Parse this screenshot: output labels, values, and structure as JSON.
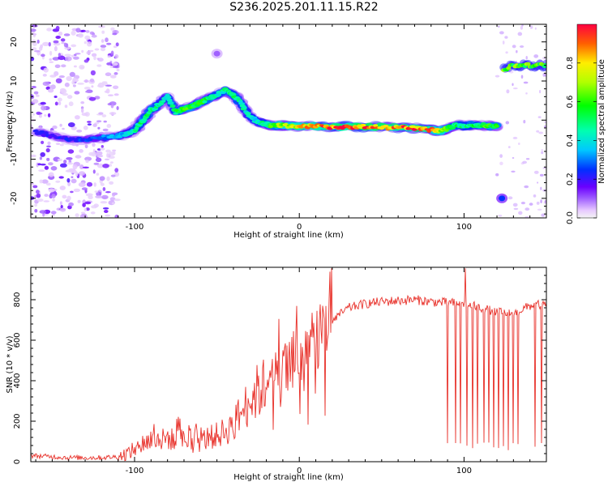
{
  "title": "S236.2025.201.11.15.R22",
  "chart_data": [
    {
      "type": "heatmap",
      "xlabel": "Height of straight line (km)",
      "ylabel": "Frequency (Hz)",
      "xlim": [
        -163,
        150
      ],
      "ylim": [
        -25,
        24.5
      ],
      "xticks": [
        -100,
        0,
        100
      ],
      "yticks": [
        -20,
        -10,
        0,
        10,
        20
      ],
      "colorbar": {
        "label": "Normalized spectral amplitude",
        "range": [
          0,
          1
        ],
        "ticks": [
          0.0,
          0.2,
          0.4,
          0.6,
          0.8
        ],
        "tick_labels": [
          "0.0",
          "0.2",
          "0.4",
          "0.6",
          "0.8"
        ]
      },
      "ridge": {
        "x": [
          -160,
          -150,
          -140,
          -130,
          -120,
          -110,
          -105,
          -100,
          -95,
          -90,
          -85,
          -80,
          -75,
          -70,
          -65,
          -60,
          -55,
          -50,
          -45,
          -40,
          -35,
          -30,
          -25,
          -20,
          -15,
          -10,
          -5,
          0,
          10,
          20,
          30,
          40,
          50,
          60,
          70,
          80,
          85,
          90,
          95,
          100,
          105,
          110,
          115,
          120
        ],
        "frequency": [
          -3,
          -4,
          -5,
          -5,
          -4.5,
          -4,
          -3.5,
          -2.5,
          0,
          2.5,
          4,
          6,
          2,
          3,
          3.5,
          4.5,
          5.5,
          6.5,
          7.5,
          6.5,
          4,
          1,
          -0.5,
          -1,
          -1.5,
          -1.2,
          -1.5,
          -1.5,
          -1.6,
          -1.7,
          -1.7,
          -1.7,
          -1.8,
          -1.9,
          -2,
          -2.5,
          -2.8,
          -2.2,
          -1.2,
          -1.5,
          -1.2,
          -1.3,
          -1.5,
          -1.5
        ],
        "amplitude": [
          0.2,
          0.2,
          0.22,
          0.25,
          0.3,
          0.35,
          0.35,
          0.45,
          0.5,
          0.5,
          0.45,
          0.4,
          0.5,
          0.6,
          0.55,
          0.55,
          0.5,
          0.45,
          0.45,
          0.5,
          0.45,
          0.4,
          0.4,
          0.5,
          0.6,
          0.7,
          0.7,
          0.75,
          0.85,
          0.9,
          0.9,
          0.88,
          0.85,
          0.85,
          0.9,
          0.85,
          0.7,
          0.6,
          0.5,
          0.45,
          0.5,
          0.55,
          0.6,
          0.55
        ]
      },
      "isolated_features": [
        {
          "x": -50,
          "frequency": 17,
          "amplitude": 0.1
        },
        {
          "x": 123,
          "frequency": -20,
          "amplitude": 0.25
        },
        {
          "x": 138,
          "frequency": 14,
          "amplitude": 0.6
        }
      ]
    },
    {
      "type": "line",
      "xlabel": "Height of straight line (km)",
      "ylabel": "SNR (10 * v/v)",
      "xlim": [
        -163,
        150
      ],
      "ylim": [
        0,
        960
      ],
      "xticks": [
        -100,
        0,
        100
      ],
      "yticks": [
        0,
        200,
        400,
        600,
        800
      ],
      "line_color": "#e8312a",
      "x": [
        -163,
        -150,
        -140,
        -130,
        -120,
        -110,
        -105,
        -100,
        -95,
        -90,
        -85,
        -80,
        -75,
        -70,
        -65,
        -60,
        -55,
        -50,
        -45,
        -40,
        -35,
        -30,
        -25,
        -20,
        -15,
        -10,
        -5,
        0,
        5,
        10,
        15,
        20,
        25,
        30,
        40,
        50,
        60,
        70,
        80,
        90,
        100,
        110,
        120,
        130,
        140,
        150
      ],
      "y": [
        30,
        25,
        20,
        20,
        20,
        25,
        40,
        60,
        90,
        110,
        100,
        120,
        100,
        110,
        95,
        100,
        120,
        130,
        150,
        180,
        250,
        300,
        350,
        380,
        400,
        420,
        460,
        500,
        550,
        600,
        650,
        700,
        730,
        760,
        780,
        790,
        795,
        800,
        790,
        785,
        780,
        760,
        740,
        730,
        770,
        780
      ],
      "dropout_x": [
        90,
        95,
        98,
        102,
        105,
        108,
        112,
        115,
        118,
        121,
        124,
        127,
        130,
        133,
        143,
        147
      ]
    }
  ]
}
